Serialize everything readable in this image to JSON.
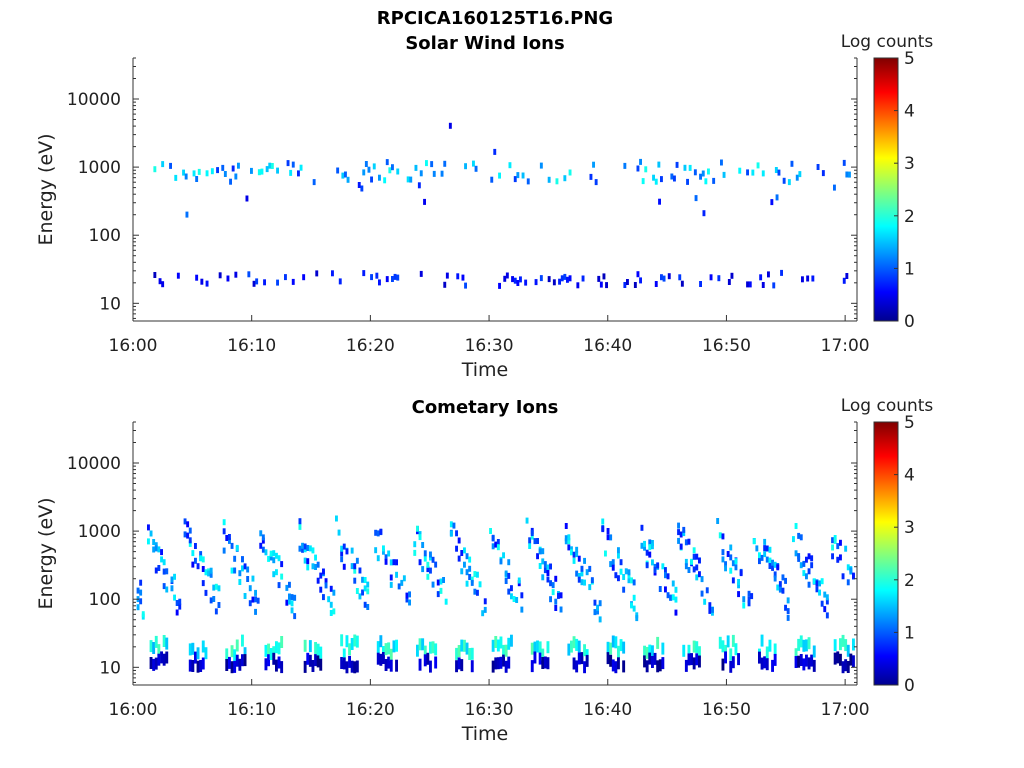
{
  "figure": {
    "title": "RPCICA160125T16.PNG"
  },
  "chart_data": [
    {
      "type": "heatmap",
      "title": "Solar Wind Ions",
      "xlabel": "Time",
      "ylabel": "Energy (eV)",
      "x_ticks": [
        "16:00",
        "16:10",
        "16:20",
        "16:30",
        "16:40",
        "16:50",
        "17:00"
      ],
      "x_range_minutes": [
        0,
        61
      ],
      "y_scale": "log",
      "y_ticks": [
        10,
        100,
        1000,
        10000
      ],
      "y_tick_labels": [
        "10",
        "100",
        "1000",
        "10000"
      ],
      "y_range": [
        5.5,
        40000
      ],
      "colorbar": {
        "label": "Log counts",
        "ticks": [
          "0",
          "1",
          "2",
          "3",
          "4",
          "5"
        ],
        "range": [
          0,
          5
        ],
        "colormap": "jet"
      },
      "description_bands": [
        {
          "energy_eV": [
            600,
            1200
          ],
          "log_counts": [
            0.8,
            2.0
          ],
          "time_minutes": [
            1.5,
            61
          ],
          "density": 0.45
        },
        {
          "energy_eV": [
            18,
            28
          ],
          "log_counts": [
            0.3,
            1.0
          ],
          "time_minutes": [
            1.5,
            61
          ],
          "density": 0.3
        },
        {
          "energy_eV": [
            150,
            600
          ],
          "log_counts": [
            0.5,
            1.2
          ],
          "time_minutes": [
            2,
            61
          ],
          "density": 0.04
        },
        {
          "energy_eV": [
            1200,
            8000
          ],
          "log_counts": [
            0.5,
            1.2
          ],
          "time_minutes": [
            22,
            42
          ],
          "density": 0.02
        }
      ]
    },
    {
      "type": "heatmap",
      "title": "Cometary Ions",
      "xlabel": "Time",
      "ylabel": "Energy (eV)",
      "x_ticks": [
        "16:00",
        "16:10",
        "16:20",
        "16:30",
        "16:40",
        "16:50",
        "17:00"
      ],
      "x_range_minutes": [
        0,
        61
      ],
      "y_scale": "log",
      "y_ticks": [
        10,
        100,
        1000,
        10000
      ],
      "y_tick_labels": [
        "10",
        "100",
        "1000",
        "10000"
      ],
      "y_range": [
        5.5,
        40000
      ],
      "colorbar": {
        "label": "Log counts",
        "ticks": [
          "0",
          "1",
          "2",
          "3",
          "4",
          "5"
        ],
        "range": [
          0,
          5
        ],
        "colormap": "jet"
      },
      "oscillation_period_minutes": 3.2,
      "description_bands": [
        {
          "energy_eV": [
            15,
            25
          ],
          "log_counts": [
            1.5,
            2.3
          ],
          "time_minutes": [
            0.5,
            61
          ],
          "density": 0.55
        },
        {
          "energy_eV": [
            10,
            14
          ],
          "log_counts": [
            0.0,
            0.6
          ],
          "time_minutes": [
            0.5,
            61
          ],
          "density": 0.55
        },
        {
          "energy_eV": [
            60,
            1000
          ],
          "log_counts": [
            0.6,
            2.0
          ],
          "time_minutes": [
            0,
            61
          ],
          "density": 0.35
        }
      ]
    }
  ]
}
